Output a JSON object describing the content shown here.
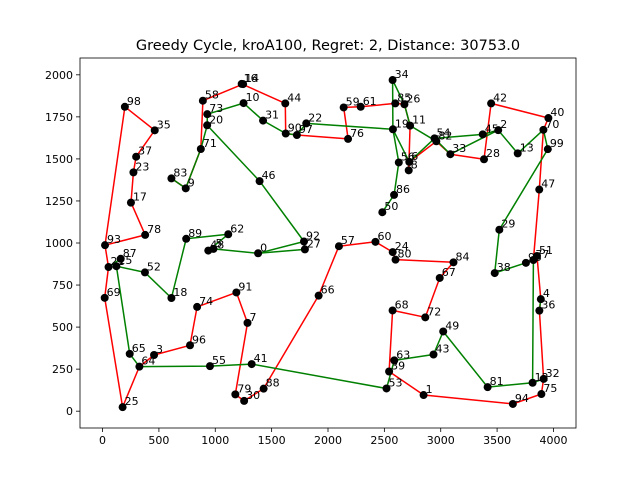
{
  "chart_data": {
    "type": "scatter",
    "title": "Greedy Cycle, kroA100, Regret: 2, Distance: 30753.0",
    "xlabel": "",
    "ylabel": "",
    "xlim": [
      -200,
      4200
    ],
    "ylim": [
      -100,
      2100
    ],
    "xticks": [
      0,
      500,
      1000,
      1500,
      2000,
      2500,
      3000,
      3500,
      4000
    ],
    "yticks": [
      0,
      250,
      500,
      750,
      1000,
      1250,
      1500,
      1750,
      2000
    ],
    "colors": {
      "cycle_a": "#ff0000",
      "cycle_b": "#008000",
      "point": "#000000"
    },
    "points": [
      {
        "id": "0",
        "x": 1380,
        "y": 939
      },
      {
        "id": "1",
        "x": 2848,
        "y": 96
      },
      {
        "id": "2",
        "x": 3510,
        "y": 1671
      },
      {
        "id": "3",
        "x": 457,
        "y": 334
      },
      {
        "id": "4",
        "x": 3888,
        "y": 666
      },
      {
        "id": "5",
        "x": 984,
        "y": 965
      },
      {
        "id": "6",
        "x": 2721,
        "y": 1482
      },
      {
        "id": "7",
        "x": 1286,
        "y": 525
      },
      {
        "id": "8",
        "x": 2716,
        "y": 1432
      },
      {
        "id": "9",
        "x": 738,
        "y": 1325
      },
      {
        "id": "10",
        "x": 1251,
        "y": 1832
      },
      {
        "id": "11",
        "x": 2728,
        "y": 1698
      },
      {
        "id": "12",
        "x": 3815,
        "y": 169
      },
      {
        "id": "13",
        "x": 3683,
        "y": 1533
      },
      {
        "id": "14",
        "x": 1247,
        "y": 1945
      },
      {
        "id": "15",
        "x": 123,
        "y": 862
      },
      {
        "id": "16",
        "x": 1234,
        "y": 1946
      },
      {
        "id": "17",
        "x": 252,
        "y": 1240
      },
      {
        "id": "18",
        "x": 611,
        "y": 673
      },
      {
        "id": "19",
        "x": 2576,
        "y": 1676
      },
      {
        "id": "20",
        "x": 928,
        "y": 1700
      },
      {
        "id": "21",
        "x": 53,
        "y": 857
      },
      {
        "id": "22",
        "x": 1807,
        "y": 1711
      },
      {
        "id": "23",
        "x": 274,
        "y": 1420
      },
      {
        "id": "24",
        "x": 2574,
        "y": 946
      },
      {
        "id": "25",
        "x": 178,
        "y": 24
      },
      {
        "id": "26",
        "x": 2678,
        "y": 1825
      },
      {
        "id": "27",
        "x": 1795,
        "y": 962
      },
      {
        "id": "28",
        "x": 3384,
        "y": 1498
      },
      {
        "id": "29",
        "x": 3520,
        "y": 1079
      },
      {
        "id": "30",
        "x": 1256,
        "y": 61
      },
      {
        "id": "31",
        "x": 1424,
        "y": 1728
      },
      {
        "id": "32",
        "x": 3913,
        "y": 192
      },
      {
        "id": "33",
        "x": 3085,
        "y": 1528
      },
      {
        "id": "34",
        "x": 2573,
        "y": 1969
      },
      {
        "id": "35",
        "x": 463,
        "y": 1670
      },
      {
        "id": "36",
        "x": 3875,
        "y": 598
      },
      {
        "id": "37",
        "x": 298,
        "y": 1513
      },
      {
        "id": "38",
        "x": 3479,
        "y": 821
      },
      {
        "id": "39",
        "x": 2542,
        "y": 236
      },
      {
        "id": "40",
        "x": 3955,
        "y": 1743
      },
      {
        "id": "41",
        "x": 1323,
        "y": 280
      },
      {
        "id": "42",
        "x": 3447,
        "y": 1830
      },
      {
        "id": "43",
        "x": 2936,
        "y": 337
      },
      {
        "id": "44",
        "x": 1621,
        "y": 1830
      },
      {
        "id": "45",
        "x": 3373,
        "y": 1646
      },
      {
        "id": "46",
        "x": 1393,
        "y": 1368
      },
      {
        "id": "47",
        "x": 3874,
        "y": 1318
      },
      {
        "id": "48",
        "x": 938,
        "y": 955
      },
      {
        "id": "49",
        "x": 3022,
        "y": 474
      },
      {
        "id": "50",
        "x": 2482,
        "y": 1183
      },
      {
        "id": "51",
        "x": 3854,
        "y": 923
      },
      {
        "id": "52",
        "x": 376,
        "y": 825
      },
      {
        "id": "53",
        "x": 2519,
        "y": 135
      },
      {
        "id": "54",
        "x": 2945,
        "y": 1622
      },
      {
        "id": "55",
        "x": 953,
        "y": 268
      },
      {
        "id": "56",
        "x": 2628,
        "y": 1479
      },
      {
        "id": "57",
        "x": 2097,
        "y": 981
      },
      {
        "id": "58",
        "x": 890,
        "y": 1846
      },
      {
        "id": "59",
        "x": 2139,
        "y": 1806
      },
      {
        "id": "60",
        "x": 2421,
        "y": 1007
      },
      {
        "id": "61",
        "x": 2290,
        "y": 1810
      },
      {
        "id": "62",
        "x": 1115,
        "y": 1052
      },
      {
        "id": "63",
        "x": 2588,
        "y": 302
      },
      {
        "id": "64",
        "x": 327,
        "y": 265
      },
      {
        "id": "65",
        "x": 241,
        "y": 341
      },
      {
        "id": "66",
        "x": 1917,
        "y": 687
      },
      {
        "id": "67",
        "x": 2991,
        "y": 792
      },
      {
        "id": "68",
        "x": 2573,
        "y": 599
      },
      {
        "id": "69",
        "x": 19,
        "y": 674
      },
      {
        "id": "70",
        "x": 3911,
        "y": 1673
      },
      {
        "id": "71",
        "x": 872,
        "y": 1559
      },
      {
        "id": "72",
        "x": 2863,
        "y": 558
      },
      {
        "id": "73",
        "x": 929,
        "y": 1766
      },
      {
        "id": "74",
        "x": 839,
        "y": 620
      },
      {
        "id": "75",
        "x": 3893,
        "y": 102
      },
      {
        "id": "76",
        "x": 2178,
        "y": 1619
      },
      {
        "id": "77",
        "x": 3822,
        "y": 899
      },
      {
        "id": "78",
        "x": 378,
        "y": 1048
      },
      {
        "id": "79",
        "x": 1178,
        "y": 100
      },
      {
        "id": "80",
        "x": 2599,
        "y": 901
      },
      {
        "id": "81",
        "x": 3416,
        "y": 143
      },
      {
        "id": "82",
        "x": 2961,
        "y": 1605
      },
      {
        "id": "83",
        "x": 611,
        "y": 1384
      },
      {
        "id": "84",
        "x": 3113,
        "y": 885
      },
      {
        "id": "85",
        "x": 2597,
        "y": 1830
      },
      {
        "id": "86",
        "x": 2586,
        "y": 1286
      },
      {
        "id": "87",
        "x": 161,
        "y": 906
      },
      {
        "id": "88",
        "x": 1429,
        "y": 134
      },
      {
        "id": "89",
        "x": 742,
        "y": 1025
      },
      {
        "id": "90",
        "x": 1625,
        "y": 1651
      },
      {
        "id": "91",
        "x": 1187,
        "y": 706
      },
      {
        "id": "92",
        "x": 1787,
        "y": 1009
      },
      {
        "id": "93",
        "x": 22,
        "y": 987
      },
      {
        "id": "94",
        "x": 3640,
        "y": 43
      },
      {
        "id": "95",
        "x": 3756,
        "y": 882
      },
      {
        "id": "96",
        "x": 776,
        "y": 392
      },
      {
        "id": "97",
        "x": 1724,
        "y": 1642
      },
      {
        "id": "98",
        "x": 198,
        "y": 1810
      },
      {
        "id": "99",
        "x": 3950,
        "y": 1558
      }
    ],
    "cycles": [
      {
        "color": "cycle_a",
        "path": [
          "93",
          "98",
          "35",
          "37",
          "23",
          "17",
          "78",
          "93"
        ]
      },
      {
        "color": "cycle_a",
        "path": [
          "69",
          "21",
          "93"
        ]
      },
      {
        "color": "cycle_a",
        "path": [
          "69",
          "25",
          "64",
          "3",
          "96",
          "74",
          "91",
          "7",
          "79",
          "30",
          "88",
          "66",
          "57",
          "60",
          "24",
          "80",
          "84",
          "67",
          "72",
          "68",
          "39",
          "1",
          "94",
          "75",
          "32",
          "36",
          "4",
          "51",
          "77",
          "47",
          "70",
          "40",
          "42",
          "28",
          "33",
          "82",
          "6",
          "8",
          "11",
          "26",
          "85",
          "61",
          "59",
          "76",
          "97",
          "90",
          "44",
          "16",
          "14",
          "58",
          "71",
          "9",
          "83"
        ]
      },
      {
        "color": "cycle_b",
        "path": [
          "83",
          "9",
          "71",
          "20",
          "73",
          "10",
          "31",
          "90",
          "97",
          "22",
          "19",
          "56",
          "86",
          "50"
        ]
      },
      {
        "color": "cycle_b",
        "path": [
          "34",
          "19",
          "6",
          "54",
          "33",
          "2",
          "13",
          "70",
          "99",
          "29",
          "38",
          "95",
          "77",
          "12",
          "81",
          "49",
          "43",
          "63",
          "53",
          "41",
          "55",
          "64",
          "65",
          "15",
          "52",
          "18",
          "89",
          "62",
          "48",
          "5",
          "0",
          "27",
          "92",
          "46",
          "20",
          "73"
        ]
      },
      {
        "color": "cycle_b",
        "path": [
          "34",
          "26",
          "11",
          "82",
          "54",
          "45",
          "2"
        ]
      },
      {
        "color": "cycle_b",
        "path": [
          "12",
          "32"
        ]
      },
      {
        "color": "cycle_b",
        "path": [
          "36",
          "4"
        ]
      },
      {
        "color": "cycle_b",
        "path": [
          "87",
          "21"
        ]
      },
      {
        "color": "cycle_b",
        "path": [
          "92",
          "0"
        ]
      }
    ]
  }
}
